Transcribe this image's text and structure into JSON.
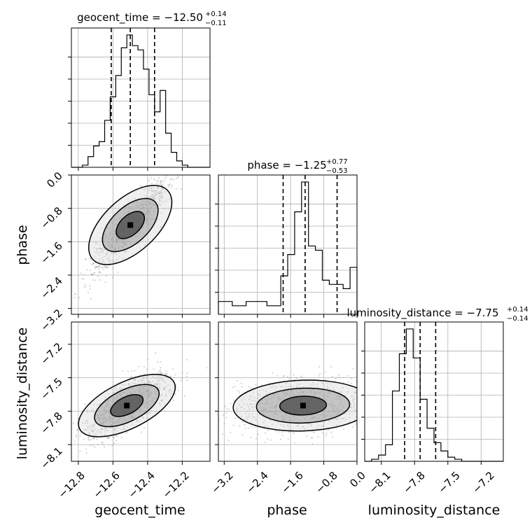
{
  "chart_data": {
    "type": "corner",
    "parameters": [
      {
        "name": "geocent_time",
        "range": [
          -12.84,
          -12.04
        ],
        "ticks": [
          -12.8,
          -12.6,
          -12.4,
          -12.2
        ],
        "tick_labels": [
          "−12.8",
          "−12.6",
          "−12.4",
          "−12.2"
        ],
        "quantiles": [
          -12.61,
          -12.5,
          -12.36
        ],
        "title": {
          "prefix": "geocent_time = ",
          "value": "−12.50",
          "plus": "+0.14",
          "minus": "−0.11"
        },
        "hist": [
          0,
          0,
          1,
          5,
          10,
          12,
          22,
          33,
          43,
          56,
          62,
          57,
          55,
          46,
          34,
          26,
          36,
          16,
          7,
          3,
          1,
          0,
          0,
          0,
          0
        ]
      },
      {
        "name": "phase",
        "range": [
          -3.34,
          0.0
        ],
        "ticks": [
          -3.2,
          -2.4,
          -1.6,
          -0.8,
          0.0
        ],
        "tick_labels": [
          "−3.2",
          "−2.4",
          "−1.6",
          "−0.8",
          "0.0"
        ],
        "quantiles": [
          -1.78,
          -1.25,
          -0.48
        ],
        "title": {
          "prefix": "phase = ",
          "value": "−1.25",
          "plus": "+0.77",
          "minus": "−0.53"
        },
        "hist": [
          3,
          3,
          2,
          2,
          3,
          3,
          3,
          2,
          2,
          9,
          14,
          24,
          31,
          16,
          15,
          8,
          7,
          7,
          6,
          11
        ]
      },
      {
        "name": "luminosity_distance",
        "range": [
          -8.25,
          -7.0
        ],
        "ticks": [
          -8.1,
          -7.8,
          -7.5,
          -7.2
        ],
        "tick_labels": [
          "−8.1",
          "−7.8",
          "−7.5",
          "−7.2"
        ],
        "quantiles": [
          -7.89,
          -7.75,
          -7.61
        ],
        "title": {
          "prefix": "luminosity_distance = ",
          "value": "−7.75",
          "plus": "+0.14",
          "minus": "−0.14"
        },
        "hist": [
          0,
          1,
          3,
          8,
          34,
          52,
          64,
          50,
          30,
          16,
          9,
          5,
          2,
          1,
          0,
          0,
          0,
          0,
          0,
          0
        ]
      }
    ],
    "y_tick_labels": {
      "phase": [
        "0.0",
        "−0.8",
        "−1.6",
        "−2.4",
        "−3.2"
      ],
      "luminosity_distance": [
        "−7.2",
        "−7.5",
        "−7.8",
        "−8.1"
      ]
    },
    "correlations": {
      "geocent_time-phase": {
        "center": [
          -12.5,
          -1.2
        ],
        "sd": [
          0.12,
          0.6
        ],
        "rho": 0.9
      },
      "geocent_time-luminosity_distance": {
        "center": [
          -12.52,
          -7.75
        ],
        "sd": [
          0.13,
          0.15
        ],
        "rho": 0.75
      },
      "phase-luminosity_distance": {
        "center": [
          -1.3,
          -7.75
        ],
        "sd": [
          0.9,
          0.12
        ],
        "rho": 0.1
      }
    },
    "grid": true,
    "colors": {
      "line": "#000000",
      "grid": "#b0b0b0",
      "points": "#888888"
    }
  }
}
